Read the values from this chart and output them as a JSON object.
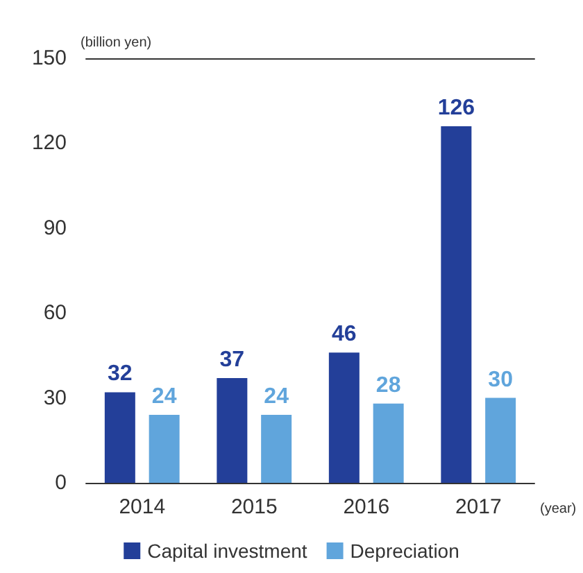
{
  "chart_data": {
    "type": "bar",
    "ylabel": "(billion yen)",
    "xlabel": "(year)",
    "categories": [
      "2014",
      "2015",
      "2016",
      "2017"
    ],
    "series": [
      {
        "name": "Capital investment",
        "color": "#233f99",
        "values": [
          32,
          37,
          46,
          126
        ]
      },
      {
        "name": "Depreciation",
        "color": "#60a5dc",
        "values": [
          24,
          24,
          28,
          30
        ]
      }
    ],
    "ylim": [
      0,
      150
    ],
    "yticks": [
      0,
      30,
      60,
      90,
      120,
      150
    ],
    "grid": false,
    "legend": "bottom",
    "data_labels": true
  }
}
